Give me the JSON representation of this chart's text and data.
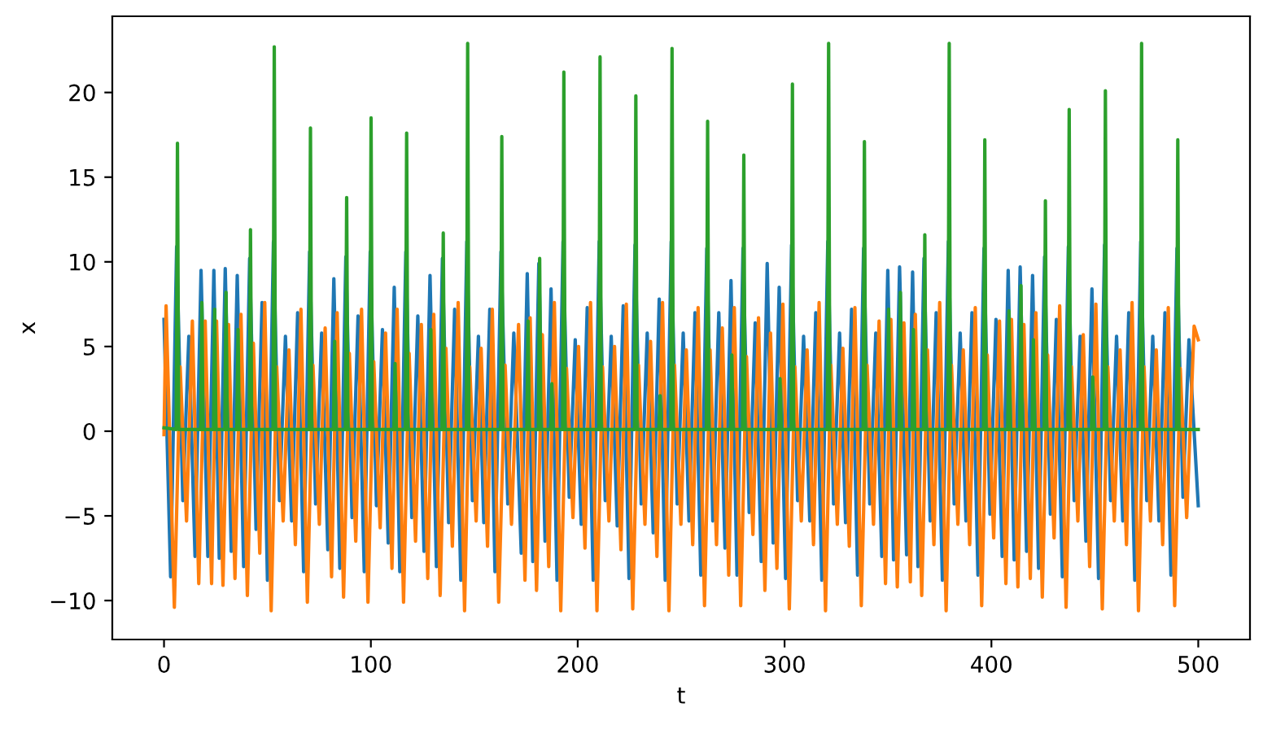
{
  "chart_data": {
    "type": "line",
    "xlabel": "t",
    "ylabel": "x",
    "xlim": [
      -25,
      525
    ],
    "ylim": [
      -12.3,
      24.5
    ],
    "xticks": [
      0,
      100,
      200,
      300,
      400,
      500
    ],
    "yticks": [
      {
        "value": -10,
        "label": "−10"
      },
      {
        "value": -5,
        "label": "−5"
      },
      0,
      5,
      10,
      15,
      20
    ],
    "grid": false,
    "marker": "none",
    "line_style": "solid",
    "series": [
      {
        "color": "#1f77b4",
        "x": [
          0,
          3.2,
          6.1,
          9.1,
          12.0,
          15.0,
          17.9,
          21.2,
          24.1,
          26.7,
          29.6,
          32.5,
          35.4,
          38.5,
          41.4,
          44.5,
          47.4,
          50.0,
          52.9,
          55.8,
          58.7,
          61.7,
          64.6,
          67.5,
          70.4,
          73.3,
          76.2,
          79.2,
          82.1,
          85.0,
          87.9,
          90.9,
          93.8,
          96.8,
          99.7,
          102.7,
          105.6,
          108.4,
          111.3,
          114.0,
          116.9,
          119.8,
          122.7,
          125.7,
          128.6,
          131.7,
          134.6,
          137.6,
          140.5,
          143.5,
          146.4,
          149.1,
          152.0,
          154.6,
          157.5,
          160.0,
          162.9,
          166.2,
          169.1,
          172.7,
          175.6,
          178.3,
          181.2,
          184.2,
          187.1,
          190.0,
          192.9,
          195.9,
          198.8,
          201.7,
          204.6,
          207.5,
          210.4,
          213.3,
          216.2,
          219.1,
          222.0,
          224.8,
          227.7,
          230.7,
          233.6,
          236.5,
          239.4,
          242.3,
          245.2,
          248.1,
          251.0,
          253.8,
          256.7,
          259.5,
          262.4,
          265.3,
          268.2,
          271.2,
          274.1,
          277.0,
          279.9,
          282.9,
          285.8,
          288.7,
          291.6,
          294.5,
          297.4,
          300.5,
          303.4,
          306.3,
          309.2,
          312.2,
          315.1,
          318.0,
          320.9,
          323.7,
          326.6,
          329.5,
          332.4,
          335.3,
          338.2,
          341.2,
          344.1,
          347.0,
          349.9,
          352.7,
          355.6,
          359.0,
          361.9,
          364.5,
          367.4,
          370.4,
          373.3,
          376.3,
          379.2,
          382.0,
          384.9,
          387.7,
          390.6,
          393.5,
          396.4,
          399.3,
          402.2,
          405.2,
          408.1,
          411.0,
          413.9,
          417.0,
          419.9,
          422.8,
          425.7,
          428.5,
          431.4,
          434.3,
          437.2,
          440.0,
          442.9,
          445.7,
          448.6,
          451.8,
          454.7,
          457.6,
          460.5,
          463.5,
          466.4,
          469.3,
          472.2,
          475.1,
          478.0,
          481.0,
          483.9,
          486.8,
          489.7,
          492.6,
          495.5,
          500
        ],
        "values": [
          6.6,
          -8.6,
          10.9,
          -4.1,
          5.6,
          -7.4,
          9.5,
          -7.4,
          9.5,
          -7.5,
          9.6,
          -7.1,
          9.2,
          -8.0,
          10.2,
          -5.8,
          7.6,
          -8.8,
          11.2,
          -4.1,
          5.6,
          -5.3,
          7.0,
          -8.3,
          10.6,
          -4.3,
          5.8,
          -7.0,
          9.0,
          -8.1,
          10.3,
          -5.1,
          6.8,
          -8.3,
          10.6,
          -4.4,
          6.0,
          -6.6,
          8.5,
          -8.3,
          10.6,
          -5.1,
          6.8,
          -7.1,
          9.2,
          -8.0,
          10.2,
          -5.4,
          7.2,
          -8.8,
          11.2,
          -4.1,
          5.6,
          -5.4,
          7.2,
          -8.3,
          10.6,
          -4.3,
          5.8,
          -7.2,
          9.3,
          -7.7,
          9.9,
          -6.5,
          8.4,
          -8.8,
          11.2,
          -3.9,
          5.4,
          -5.5,
          7.3,
          -8.8,
          11.2,
          -4.1,
          5.6,
          -5.6,
          7.4,
          -8.7,
          11.0,
          -4.3,
          5.8,
          -6.0,
          7.8,
          -8.8,
          11.2,
          -4.3,
          5.8,
          -5.3,
          7.0,
          -8.5,
          10.8,
          -5.3,
          7.0,
          -6.9,
          8.9,
          -8.5,
          10.8,
          -4.8,
          6.4,
          -7.7,
          9.9,
          -6.6,
          8.5,
          -8.7,
          11.0,
          -4.1,
          5.6,
          -5.3,
          7.0,
          -8.8,
          11.2,
          -4.3,
          5.8,
          -5.4,
          7.2,
          -8.5,
          10.8,
          -4.3,
          5.8,
          -7.4,
          9.5,
          -7.6,
          9.7,
          -7.3,
          9.4,
          -8.0,
          10.2,
          -5.3,
          7.0,
          -8.8,
          11.2,
          -4.3,
          5.8,
          -5.3,
          7.0,
          -8.5,
          10.8,
          -4.9,
          6.6,
          -7.4,
          9.5,
          -7.6,
          9.7,
          -7.1,
          9.2,
          -8.1,
          10.3,
          -4.9,
          6.6,
          -8.6,
          10.9,
          -4.1,
          5.6,
          -6.5,
          8.4,
          -8.7,
          11.0,
          -4.1,
          5.6,
          -5.3,
          7.0,
          -8.8,
          11.2,
          -4.1,
          5.6,
          -5.3,
          7.0,
          -8.5,
          10.8,
          -3.9,
          5.4,
          -4.4
        ]
      },
      {
        "color": "#ff7f0e",
        "x": [
          0,
          1.0,
          5.0,
          7.8,
          10.9,
          13.7,
          16.8,
          19.9,
          23.0,
          25.4,
          28.5,
          31.2,
          34.3,
          37.2,
          40.3,
          43.2,
          46.3,
          48.7,
          51.8,
          54.5,
          57.6,
          60.4,
          63.5,
          66.2,
          69.3,
          72.0,
          75.1,
          77.9,
          81.0,
          83.7,
          86.8,
          89.6,
          92.7,
          95.5,
          98.6,
          101.4,
          104.5,
          107.1,
          110.2,
          112.7,
          115.8,
          118.5,
          121.6,
          124.4,
          127.5,
          130.4,
          133.5,
          136.3,
          139.4,
          142.2,
          145.3,
          147.8,
          150.9,
          153.3,
          156.4,
          158.7,
          161.8,
          164.9,
          168.0,
          171.4,
          174.5,
          177.0,
          180.1,
          182.9,
          186.0,
          188.7,
          191.8,
          194.6,
          197.7,
          200.4,
          203.5,
          206.2,
          209.3,
          212.0,
          215.1,
          217.8,
          220.9,
          223.5,
          226.6,
          229.4,
          232.5,
          235.2,
          238.3,
          241.0,
          244.1,
          246.8,
          249.9,
          252.5,
          255.6,
          258.2,
          261.3,
          264.0,
          267.1,
          269.9,
          273.0,
          275.7,
          278.8,
          281.6,
          284.7,
          287.4,
          290.5,
          293.2,
          296.3,
          299.2,
          302.3,
          305.0,
          308.1,
          310.9,
          314.0,
          316.7,
          319.8,
          322.4,
          325.5,
          328.2,
          331.3,
          334.0,
          337.1,
          339.9,
          343.0,
          345.7,
          348.8,
          351.4,
          354.5,
          357.7,
          360.8,
          363.2,
          366.3,
          369.1,
          372.2,
          375.0,
          378.1,
          380.7,
          383.8,
          386.4,
          389.5,
          392.2,
          395.3,
          398.0,
          401.1,
          403.9,
          407.0,
          409.7,
          412.8,
          415.7,
          418.8,
          421.5,
          424.6,
          427.2,
          430.3,
          433.0,
          436.1,
          438.7,
          441.8,
          444.4,
          447.5,
          450.5,
          453.6,
          456.3,
          459.4,
          462.2,
          465.3,
          468.0,
          471.1,
          473.8,
          476.9,
          479.7,
          482.8,
          485.5,
          488.6,
          491.3,
          494.4,
          498.0,
          500
        ],
        "values": [
          -0.2,
          7.4,
          -10.4,
          3.8,
          -5.3,
          6.5,
          -9.0,
          6.5,
          -9.0,
          6.5,
          -9.1,
          6.3,
          -8.7,
          6.9,
          -9.7,
          5.2,
          -7.2,
          7.6,
          -10.6,
          3.8,
          -5.3,
          4.8,
          -6.7,
          7.2,
          -10.1,
          3.9,
          -5.5,
          6.1,
          -8.6,
          7.0,
          -9.8,
          4.6,
          -6.5,
          7.2,
          -10.1,
          4.1,
          -5.7,
          5.8,
          -8.1,
          7.2,
          -10.1,
          4.6,
          -6.5,
          6.3,
          -8.7,
          6.9,
          -9.7,
          4.9,
          -6.8,
          7.6,
          -10.6,
          3.8,
          -5.3,
          4.9,
          -6.8,
          7.2,
          -10.1,
          3.9,
          -5.5,
          6.3,
          -8.8,
          6.7,
          -9.4,
          5.7,
          -8.0,
          7.6,
          -10.6,
          3.7,
          -5.1,
          5.0,
          -6.9,
          7.6,
          -10.6,
          3.8,
          -5.3,
          5.0,
          -7.0,
          7.5,
          -10.5,
          3.9,
          -5.5,
          5.3,
          -7.4,
          7.6,
          -10.6,
          3.9,
          -5.5,
          4.8,
          -6.7,
          7.3,
          -10.3,
          4.8,
          -6.7,
          6.1,
          -8.5,
          7.3,
          -10.3,
          4.4,
          -6.1,
          6.7,
          -9.4,
          5.8,
          -8.1,
          7.5,
          -10.5,
          3.8,
          -5.3,
          4.8,
          -6.7,
          7.6,
          -10.6,
          3.9,
          -5.5,
          4.9,
          -6.8,
          7.3,
          -10.3,
          3.9,
          -5.5,
          6.5,
          -9.0,
          6.6,
          -9.2,
          6.4,
          -8.9,
          6.9,
          -9.7,
          4.8,
          -6.7,
          7.6,
          -10.6,
          3.9,
          -5.5,
          4.8,
          -6.7,
          7.3,
          -10.3,
          4.5,
          -6.3,
          6.5,
          -9.0,
          6.6,
          -9.2,
          6.3,
          -8.7,
          7.0,
          -9.8,
          4.5,
          -6.3,
          7.4,
          -10.4,
          3.8,
          -5.3,
          5.7,
          -8.0,
          7.5,
          -10.5,
          3.8,
          -5.3,
          4.8,
          -6.7,
          7.6,
          -10.6,
          3.8,
          -5.3,
          4.8,
          -6.7,
          7.3,
          -10.3,
          3.7,
          -5.1,
          6.2,
          5.4
        ]
      },
      {
        "color": "#2ca02c",
        "x": [
          0,
          5.9,
          6.5,
          7.1,
          17.7,
          18.3,
          18.9,
          23.9,
          24.5,
          25.1,
          29.4,
          30.0,
          30.6,
          35.2,
          35.8,
          36.4,
          41.2,
          41.8,
          42.4,
          52.7,
          53.3,
          53.9,
          70.2,
          70.8,
          71.4,
          81.9,
          82.5,
          83.1,
          87.7,
          88.3,
          88.9,
          99.5,
          100.1,
          100.7,
          111.1,
          111.7,
          112.3,
          116.7,
          117.3,
          117.9,
          128.4,
          129.0,
          129.6,
          134.4,
          135.0,
          135.6,
          146.2,
          146.8,
          147.4,
          162.7,
          163.3,
          163.9,
          175.4,
          176.0,
          176.6,
          181.0,
          181.6,
          182.2,
          186.9,
          187.5,
          188.1,
          192.7,
          193.3,
          193.9,
          210.2,
          210.8,
          211.4,
          227.5,
          228.1,
          228.7,
          239.2,
          239.8,
          240.4,
          245.0,
          245.6,
          246.2,
          262.2,
          262.8,
          263.4,
          273.9,
          274.5,
          275.1,
          279.7,
          280.3,
          280.9,
          297.2,
          297.8,
          298.4,
          303.2,
          303.8,
          304.4,
          320.7,
          321.3,
          321.9,
          338.0,
          338.6,
          339.2,
          349.7,
          350.3,
          350.9,
          355.4,
          356.0,
          356.6,
          361.7,
          362.3,
          362.9,
          367.2,
          367.8,
          368.4,
          379.0,
          379.6,
          380.2,
          396.2,
          396.8,
          397.4,
          407.9,
          408.5,
          409.1,
          413.7,
          414.3,
          414.9,
          419.7,
          420.3,
          420.9,
          425.5,
          426.1,
          426.7,
          437.0,
          437.6,
          438.2,
          448.4,
          449.0,
          449.6,
          454.5,
          455.1,
          455.7,
          472.0,
          472.6,
          473.2,
          489.5,
          490.1,
          490.7,
          500
        ],
        "values": [
          0.2,
          0.1,
          17.0,
          0.1,
          0.1,
          7.6,
          0.1,
          0.1,
          7.2,
          0.1,
          0.1,
          8.2,
          0.1,
          0.1,
          6.0,
          0.1,
          0.1,
          11.9,
          0.1,
          0.1,
          22.7,
          0.1,
          0.1,
          17.9,
          0.1,
          0.1,
          5.3,
          0.1,
          0.1,
          13.8,
          0.1,
          0.1,
          18.5,
          0.1,
          0.1,
          4.0,
          0.1,
          0.1,
          17.6,
          0.1,
          0.1,
          6.0,
          0.1,
          0.1,
          11.7,
          0.1,
          0.1,
          22.9,
          0.1,
          0.1,
          17.4,
          0.1,
          0.1,
          6.5,
          0.1,
          0.1,
          10.2,
          0.1,
          0.1,
          2.8,
          0.1,
          0.1,
          21.2,
          0.1,
          0.1,
          22.1,
          0.1,
          0.1,
          19.8,
          0.1,
          0.1,
          2.1,
          0.1,
          0.1,
          22.6,
          0.1,
          0.1,
          18.3,
          0.1,
          0.1,
          4.5,
          0.1,
          0.1,
          16.3,
          0.1,
          0.1,
          3.1,
          0.1,
          0.1,
          20.5,
          0.1,
          0.1,
          22.9,
          0.1,
          0.1,
          17.1,
          0.1,
          0.1,
          7.2,
          0.1,
          0.1,
          8.2,
          0.1,
          0.1,
          6.0,
          0.1,
          0.1,
          11.6,
          0.1,
          0.1,
          22.9,
          0.1,
          0.1,
          17.2,
          0.1,
          0.1,
          7.1,
          0.1,
          0.1,
          8.6,
          0.1,
          0.1,
          5.4,
          0.1,
          0.1,
          13.6,
          0.1,
          0.1,
          19.0,
          0.1,
          0.1,
          3.2,
          0.1,
          0.1,
          20.1,
          0.1,
          0.1,
          22.9,
          0.1,
          0.1,
          17.2,
          0.1,
          0.1
        ]
      }
    ]
  }
}
